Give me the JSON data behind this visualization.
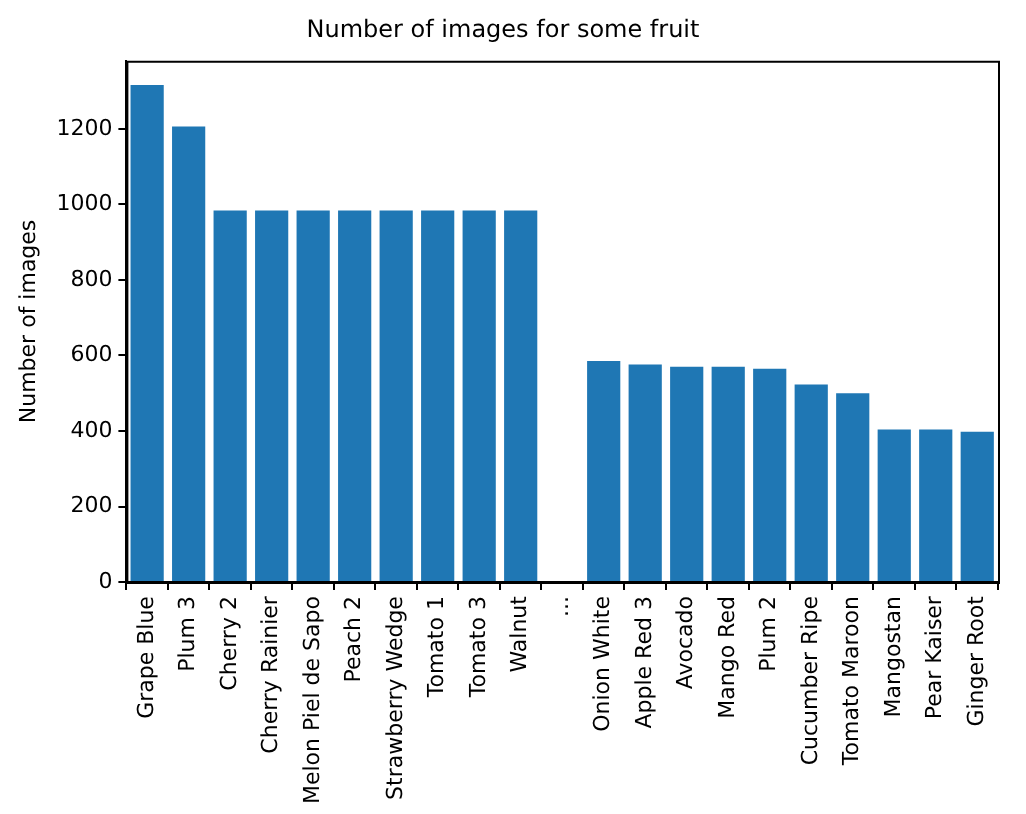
{
  "chart_data": {
    "type": "bar",
    "title": "Number of images for some fruit",
    "ylabel": "Number of images",
    "categories": [
      "Grape Blue",
      "Plum 3",
      "Cherry 2",
      "Cherry Rainier",
      "Melon Piel de Sapo",
      "Peach 2",
      "Strawberry Wedge",
      "Tomato 1",
      "Tomato 3",
      "Walnut",
      "...",
      "Onion White",
      "Apple Red 3",
      "Avocado",
      "Mango Red",
      "Plum 2",
      "Cucumber Ripe",
      "Tomato Maroon",
      "Mangostan",
      "Pear Kaiser",
      "Ginger Root"
    ],
    "values": [
      1316,
      1206,
      984,
      984,
      984,
      984,
      984,
      984,
      984,
      984,
      null,
      585,
      576,
      570,
      570,
      565,
      523,
      500,
      404,
      404,
      398
    ],
    "color": "#1f77b4",
    "ylim": [
      0,
      1380
    ],
    "yticks": [
      0,
      200,
      400,
      600,
      800,
      1000,
      1200
    ],
    "grid": false,
    "legend": false
  }
}
